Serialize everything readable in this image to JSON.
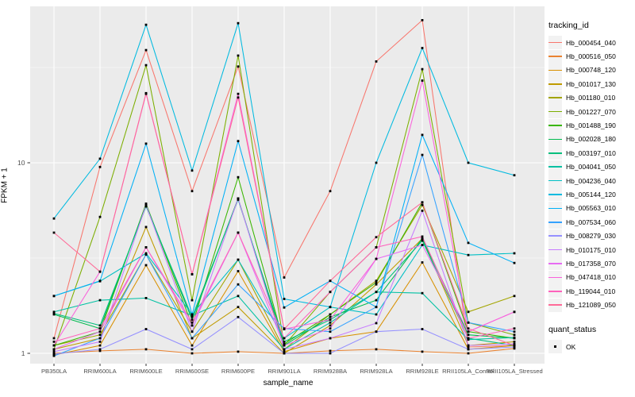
{
  "figure": {
    "background": "#FFFFFF",
    "panel_background": "#EBEBEB",
    "grid_color": "#FFFFFF",
    "axis_text_color": "#4D4D4D",
    "tick_mark_color": "#333333",
    "marker_color": "#000000",
    "legend_key_background": "#F2F2F2"
  },
  "axes": {
    "x_title": "sample_name",
    "y_title": "FPKM + 1",
    "y_tick_labels": [
      "10",
      "1"
    ]
  },
  "legend": {
    "tracking_title": "tracking_id",
    "quant_title": "quant_status",
    "quant_items": [
      {
        "label": "OK",
        "marker": "black-square"
      }
    ]
  },
  "chart_data": {
    "type": "line",
    "title": "",
    "xlabel": "sample_name",
    "ylabel": "FPKM + 1",
    "x_type": "categorical",
    "y_scale": "log10",
    "ylim": [
      0.9,
      66
    ],
    "y_major_ticks": [
      1,
      10
    ],
    "y_minor_breaks": [
      3.162,
      31.62
    ],
    "grid": "on",
    "legend_position": "right",
    "point_marker": "filled-black-square",
    "point_marker_meaning": "quant_status = OK",
    "categories": [
      "PB350LA",
      "RRIM600LA",
      "RRIM600LE",
      "RRIM600SE",
      "RRIM600PE",
      "RRIM901LA",
      "RRIM928BA",
      "RRIM928LA",
      "RRIM928LE",
      "RRII105LA_Control",
      "RRII105LA_Stressed"
    ],
    "series": [
      {
        "name": "Hb_000454_040",
        "color": "#F8766D",
        "values": [
          1.2,
          9.5,
          39,
          7.1,
          32,
          2.5,
          7.1,
          34,
          56,
          1.08,
          1.1
        ]
      },
      {
        "name": "Hb_000516_050",
        "color": "#EA8331",
        "values": [
          1.0,
          1.03,
          1.05,
          1.0,
          1.02,
          1.0,
          1.03,
          1.05,
          1.02,
          1.0,
          1.06
        ]
      },
      {
        "name": "Hb_000748_120",
        "color": "#D89000",
        "values": [
          0.98,
          1.1,
          2.9,
          1.1,
          2.7,
          1.02,
          1.2,
          1.3,
          3.0,
          1.05,
          1.1
        ]
      },
      {
        "name": "Hb_001017_130",
        "color": "#C09B00",
        "values": [
          1.05,
          1.2,
          4.6,
          1.2,
          1.75,
          1.0,
          1.4,
          2.3,
          4.0,
          1.1,
          1.15
        ]
      },
      {
        "name": "Hb_001180_010",
        "color": "#A3A500",
        "values": [
          1.1,
          1.25,
          3.3,
          1.3,
          3.1,
          1.05,
          1.6,
          2.4,
          6.0,
          1.65,
          2.0
        ]
      },
      {
        "name": "Hb_001227_070",
        "color": "#7CAE00",
        "values": [
          1.05,
          5.2,
          32.5,
          1.9,
          36.5,
          1.1,
          2.1,
          3.6,
          31,
          1.45,
          1.25
        ]
      },
      {
        "name": "Hb_001488_190",
        "color": "#39B600",
        "values": [
          1.1,
          1.3,
          6.1,
          1.4,
          8.4,
          1.12,
          1.6,
          2.35,
          6.2,
          1.3,
          1.2
        ]
      },
      {
        "name": "Hb_002028_180",
        "color": "#00BB4E",
        "values": [
          1.6,
          1.35,
          6.0,
          1.5,
          6.5,
          1.1,
          1.55,
          1.9,
          4.0,
          1.25,
          1.2
        ]
      },
      {
        "name": "Hb_003197_010",
        "color": "#00BF7D",
        "values": [
          1.62,
          1.4,
          5.9,
          1.55,
          6.4,
          1.15,
          1.5,
          2.1,
          3.9,
          1.2,
          1.1
        ]
      },
      {
        "name": "Hb_004041_050",
        "color": "#00C1A3",
        "values": [
          1.65,
          1.9,
          1.95,
          1.58,
          2.0,
          1.05,
          1.45,
          2.1,
          2.07,
          1.18,
          1.21
        ]
      },
      {
        "name": "Hb_004236_040",
        "color": "#00BFC4",
        "values": [
          2.0,
          2.39,
          3.35,
          1.6,
          3.1,
          1.2,
          1.75,
          1.6,
          3.7,
          3.28,
          3.35
        ]
      },
      {
        "name": "Hb_005144_120",
        "color": "#00BAE0",
        "values": [
          5.1,
          10.5,
          53,
          9.1,
          54,
          1.93,
          1.75,
          10,
          40,
          10,
          8.6
        ]
      },
      {
        "name": "Hb_005563_010",
        "color": "#00B0F6",
        "values": [
          2.0,
          2.4,
          12.6,
          1.6,
          13,
          1.74,
          2.4,
          1.75,
          14,
          3.8,
          2.98
        ]
      },
      {
        "name": "Hb_007534_060",
        "color": "#35A2FF",
        "values": [
          0.97,
          1.2,
          3.3,
          1.2,
          2.3,
          1.35,
          1.3,
          1.75,
          11,
          1.45,
          1.3
        ]
      },
      {
        "name": "Hb_008279_030",
        "color": "#9590FF",
        "values": [
          0.99,
          1.05,
          1.34,
          1.05,
          1.55,
          1.0,
          1.0,
          1.3,
          1.34,
          1.05,
          1.08
        ]
      },
      {
        "name": "Hb_010175_010",
        "color": "#C77CFF",
        "values": [
          1.02,
          1.15,
          6.0,
          1.3,
          6.5,
          1.05,
          1.2,
          1.44,
          5.6,
          1.1,
          1.12
        ]
      },
      {
        "name": "Hb_017358_070",
        "color": "#E76BF3",
        "values": [
          1.05,
          1.3,
          3.6,
          1.4,
          4.3,
          1.1,
          1.35,
          3.13,
          3.7,
          1.3,
          1.65
        ]
      },
      {
        "name": "Hb_047418_010",
        "color": "#FA62DB",
        "values": [
          1.1,
          2.68,
          23,
          2.6,
          23,
          1.34,
          1.5,
          3.13,
          27,
          1.3,
          1.65
        ]
      },
      {
        "name": "Hb_119044_010",
        "color": "#FF62BC",
        "values": [
          1.15,
          1.35,
          3.6,
          1.45,
          4.3,
          1.2,
          2.1,
          3.6,
          4.1,
          1.2,
          1.35
        ]
      },
      {
        "name": "Hb_121089_050",
        "color": "#FF6A98",
        "values": [
          4.3,
          2.68,
          23.2,
          2.6,
          22,
          1.34,
          2.4,
          4.07,
          6.2,
          1.35,
          1.1
        ]
      }
    ]
  }
}
